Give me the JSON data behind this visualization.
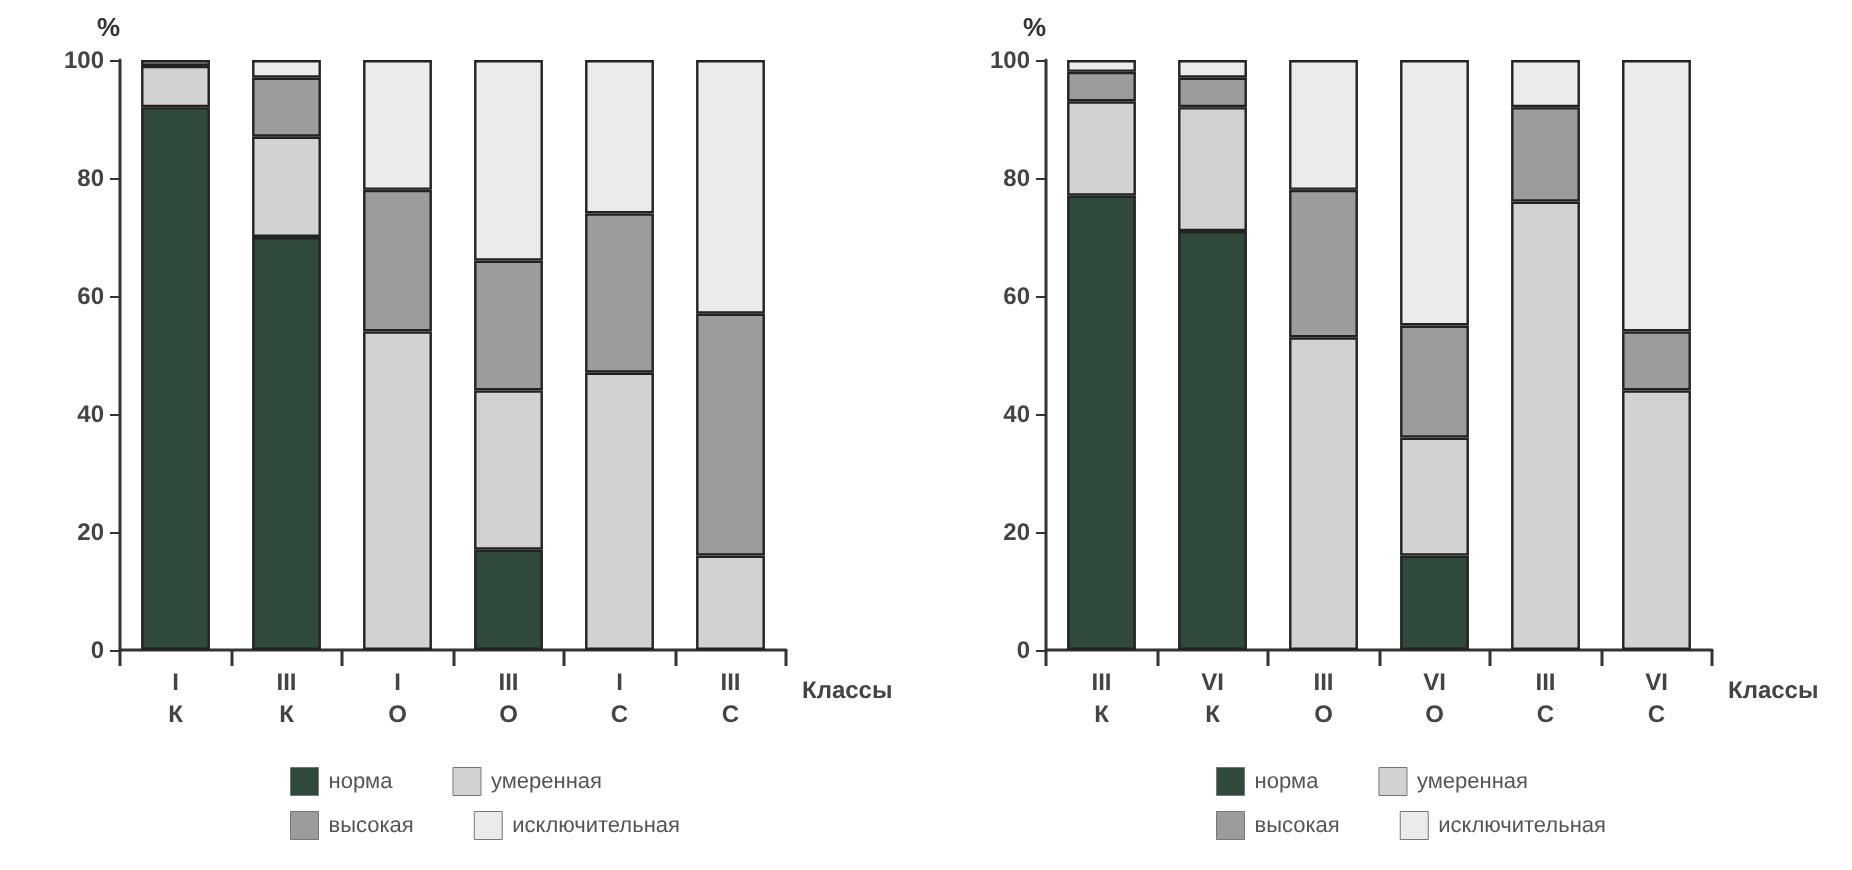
{
  "chart_data": [
    {
      "type": "bar",
      "stacked": true,
      "xlabel": "Классы",
      "ylabel": "%",
      "categories": [
        "I\nК",
        "III\nК",
        "I\nО",
        "III\nО",
        "I\nС",
        "III\nС"
      ],
      "ylim": [
        0,
        100
      ],
      "yticks": [
        0,
        20,
        40,
        60,
        80,
        100
      ],
      "grid": false,
      "legend": "bottom",
      "series": [
        {
          "name": "норма",
          "color": "#2f4a3a",
          "values": [
            92,
            70,
            0,
            17,
            0,
            0
          ]
        },
        {
          "name": "умеренная",
          "color": "#d2d2d2",
          "values": [
            7,
            17,
            54,
            27,
            47,
            16
          ]
        },
        {
          "name": "высокая",
          "color": "#9c9c9c",
          "values": [
            1,
            10,
            24,
            22,
            27,
            41
          ]
        },
        {
          "name": "исключительная",
          "color": "#ebebeb",
          "values": [
            0,
            3,
            22,
            34,
            26,
            43
          ]
        }
      ]
    },
    {
      "type": "bar",
      "stacked": true,
      "xlabel": "Классы",
      "ylabel": "%",
      "categories": [
        "III\nК",
        "VI\nК",
        "III\nО",
        "VI\nО",
        "III\nС",
        "VI\nС"
      ],
      "ylim": [
        0,
        100
      ],
      "yticks": [
        0,
        20,
        40,
        60,
        80,
        100
      ],
      "grid": false,
      "legend": "bottom",
      "series": [
        {
          "name": "норма",
          "color": "#2f4a3a",
          "values": [
            77,
            71,
            0,
            16,
            0,
            0
          ]
        },
        {
          "name": "умеренная",
          "color": "#d2d2d2",
          "values": [
            16,
            21,
            53,
            20,
            76,
            44
          ]
        },
        {
          "name": "высокая",
          "color": "#9c9c9c",
          "values": [
            5,
            5,
            25,
            19,
            16,
            10
          ]
        },
        {
          "name": "исключительная",
          "color": "#ebebeb",
          "values": [
            2,
            3,
            22,
            45,
            8,
            46
          ]
        }
      ]
    }
  ]
}
